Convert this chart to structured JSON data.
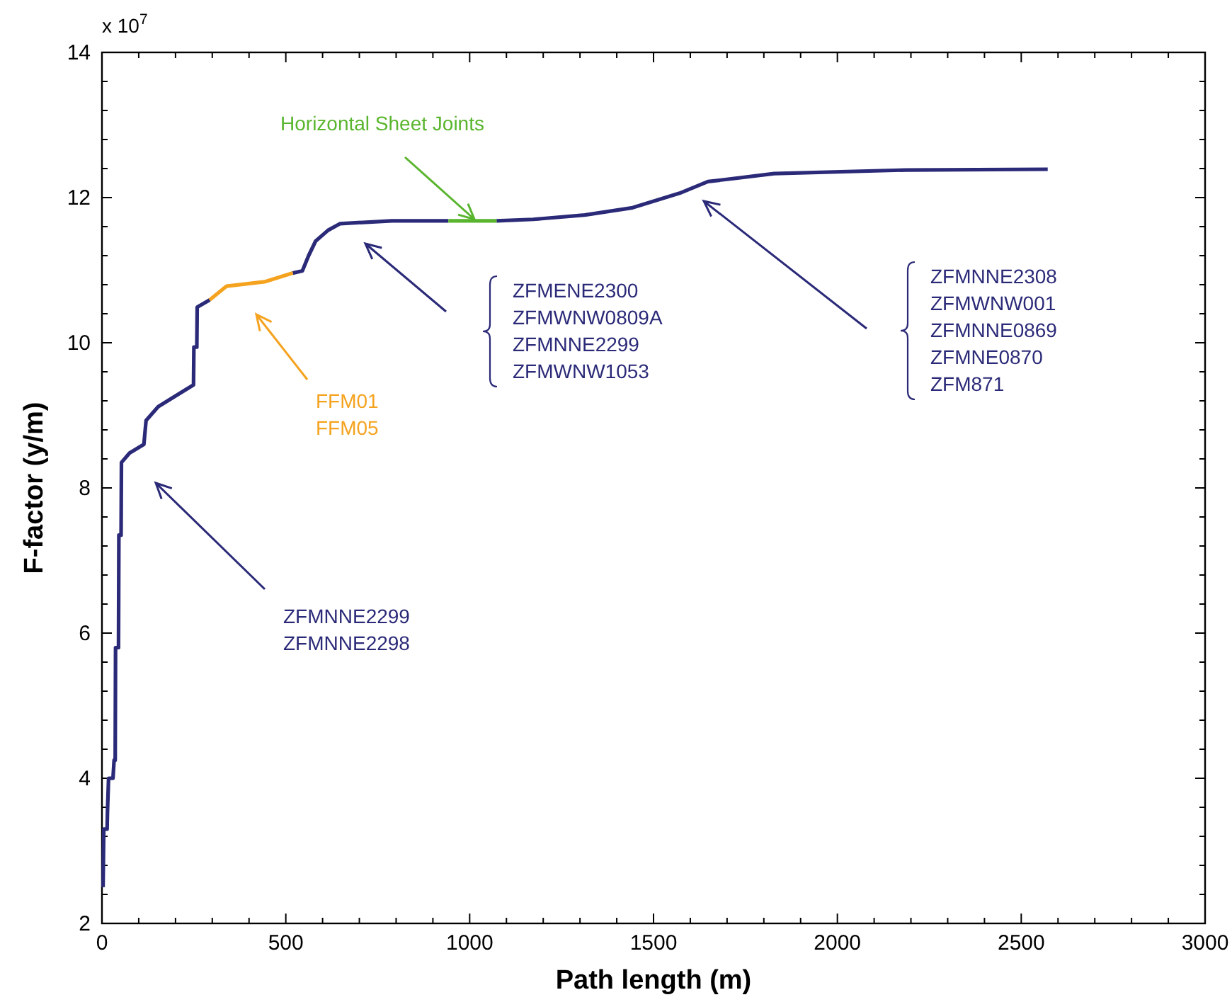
{
  "chart_data": {
    "type": "line",
    "xlabel": "Path length (m)",
    "ylabel": "F-factor (y/m)",
    "xlim": [
      0,
      3000
    ],
    "ylim": [
      2,
      14
    ],
    "xticks": [
      0,
      {
        "value": 100,
        "label": null
      },
      {
        "value": 200,
        "label": null
      },
      {
        "value": 300,
        "label": null
      },
      {
        "value": 400,
        "label": null
      },
      500,
      {
        "value": 600,
        "label": null
      },
      {
        "value": 700,
        "label": null
      },
      {
        "value": 800,
        "label": null
      },
      {
        "value": 900,
        "label": null
      },
      1000,
      {
        "value": 1100,
        "label": null
      },
      {
        "value": 1200,
        "label": null
      },
      {
        "value": 1300,
        "label": null
      },
      {
        "value": 1400,
        "label": null
      },
      1500,
      {
        "value": 1600,
        "label": null
      },
      {
        "value": 1700,
        "label": null
      },
      {
        "value": 1800,
        "label": null
      },
      {
        "value": 1900,
        "label": null
      },
      2000,
      {
        "value": 2100,
        "label": null
      },
      {
        "value": 2200,
        "label": null
      },
      {
        "value": 2300,
        "label": null
      },
      {
        "value": 2400,
        "label": null
      },
      2500,
      {
        "value": 2600,
        "label": null
      },
      {
        "value": 2700,
        "label": null
      },
      {
        "value": 2800,
        "label": null
      },
      {
        "value": 2900,
        "label": null
      },
      3000
    ],
    "yticks": [
      2,
      {
        "value": 2.4,
        "label": null
      },
      {
        "value": 2.8,
        "label": null
      },
      {
        "value": 3.2,
        "label": null
      },
      {
        "value": 3.6,
        "label": null
      },
      4,
      {
        "value": 4.4,
        "label": null
      },
      {
        "value": 4.8,
        "label": null
      },
      {
        "value": 5.2,
        "label": null
      },
      {
        "value": 5.6,
        "label": null
      },
      6,
      {
        "value": 6.4,
        "label": null
      },
      {
        "value": 6.8,
        "label": null
      },
      {
        "value": 7.2,
        "label": null
      },
      {
        "value": 7.6,
        "label": null
      },
      8,
      {
        "value": 8.4,
        "label": null
      },
      {
        "value": 8.8,
        "label": null
      },
      {
        "value": 9.2,
        "label": null
      },
      {
        "value": 9.6,
        "label": null
      },
      10,
      {
        "value": 10.4,
        "label": null
      },
      {
        "value": 10.8,
        "label": null
      },
      {
        "value": 11.2,
        "label": null
      },
      {
        "value": 11.6,
        "label": null
      },
      12,
      {
        "value": 12.4,
        "label": null
      },
      {
        "value": 12.8,
        "label": null
      },
      {
        "value": 13.2,
        "label": null
      },
      {
        "value": 13.6,
        "label": null
      },
      14
    ],
    "series": [
      {
        "color": "#2b2a78",
        "x": [
          3,
          5,
          14,
          15,
          18,
          30,
          33,
          36,
          37,
          45,
          46,
          52,
          53,
          75,
          114,
          120,
          153,
          249,
          250,
          258,
          259,
          293,
          400,
          519,
          545,
          562,
          581,
          615,
          647,
          788,
          942,
          1000,
          1073,
          1173,
          1313,
          1443,
          1571,
          1648,
          1828,
          2187,
          2572
        ],
        "values": [
          2.5,
          3.3,
          3.3,
          3.54,
          4.0,
          4.0,
          4.25,
          4.25,
          5.8,
          5.8,
          7.35,
          7.35,
          8.35,
          8.48,
          8.6,
          8.93,
          9.12,
          9.42,
          9.94,
          9.94,
          10.49,
          10.59,
          null,
          10.96,
          10.99,
          11.2,
          11.4,
          11.55,
          11.64,
          11.68,
          11.68,
          null,
          11.68,
          11.7,
          11.76,
          11.86,
          12.06,
          12.22,
          12.33,
          12.38,
          12.39
        ]
      },
      {
        "color": "#f5a31f",
        "x": [
          293,
          339,
          442,
          519
        ],
        "values": [
          10.59,
          10.78,
          10.84,
          10.96
        ]
      },
      {
        "color": "#5ab52e",
        "x": [
          942,
          1073
        ],
        "values": [
          11.68,
          11.68
        ]
      }
    ],
    "annotations": [
      "x 10$^{7}$",
      {
        "text": "Horizontal Sheet Joints",
        "x": 1013,
        "y": 11.7
      },
      "FFM01\nFFM05",
      "ZFMNNE2299\nZFMNNE2298",
      "ZFMENE2300\nZFMWNW0809A\nZFMNNE2299\nZFMWNW1053",
      "ZFMNNE2308\nZFMWNW001\nZFMNNE0869\nZFMNE0870\nZFM871"
    ]
  }
}
